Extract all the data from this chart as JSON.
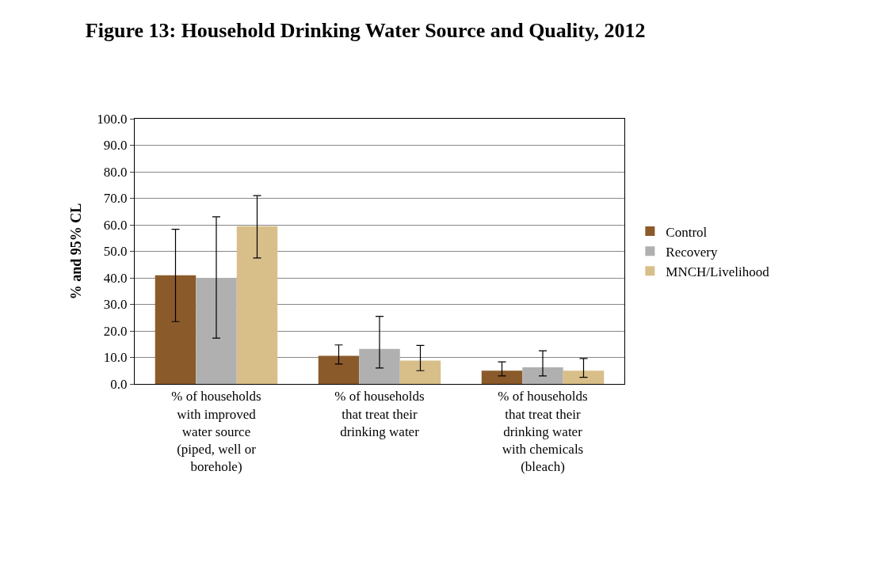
{
  "chart_data": {
    "type": "bar",
    "title": "Figure 13: Household Drinking Water Source and Quality, 2012",
    "ylabel": "% and 95% CL",
    "categories": [
      "% of households with improved water source (piped, well or borehole)",
      "% of households that treat their drinking water",
      "% of households that treat their drinking water with chemicals (bleach)"
    ],
    "series": [
      {
        "name": "Control",
        "color": "#8b5a2b",
        "values": [
          41,
          10.6,
          5
        ],
        "errors": [
          [
            23.5,
            58.3
          ],
          [
            7.5,
            14.7
          ],
          [
            3,
            8.3
          ]
        ]
      },
      {
        "name": "Recovery",
        "color": "#b0b0b0",
        "values": [
          40,
          13.2,
          6.3
        ],
        "errors": [
          [
            17.3,
            63
          ],
          [
            6,
            25.5
          ],
          [
            3,
            12.5
          ]
        ]
      },
      {
        "name": "MNCH/Livelihood",
        "color": "#d8bf8a",
        "values": [
          59.5,
          8.8,
          5
        ],
        "errors": [
          [
            47.5,
            71
          ],
          [
            5,
            14.5
          ],
          [
            2.5,
            9.6
          ]
        ]
      }
    ],
    "ylim": [
      0,
      100
    ],
    "yticks": [
      {
        "value": 0,
        "label": "0.0"
      },
      {
        "value": 10,
        "label": "10.0"
      },
      {
        "value": 20,
        "label": "20.0"
      },
      {
        "value": 30,
        "label": "30.0"
      },
      {
        "value": 40,
        "label": "40.0"
      },
      {
        "value": 50,
        "label": "50.0"
      },
      {
        "value": 60,
        "label": "60.0"
      },
      {
        "value": 70,
        "label": "70.0"
      },
      {
        "value": 80,
        "label": "80.0"
      },
      {
        "value": 90,
        "label": "90.0"
      },
      {
        "value": 100,
        "label": "100.0"
      }
    ],
    "grid": "y",
    "legend": "right"
  }
}
